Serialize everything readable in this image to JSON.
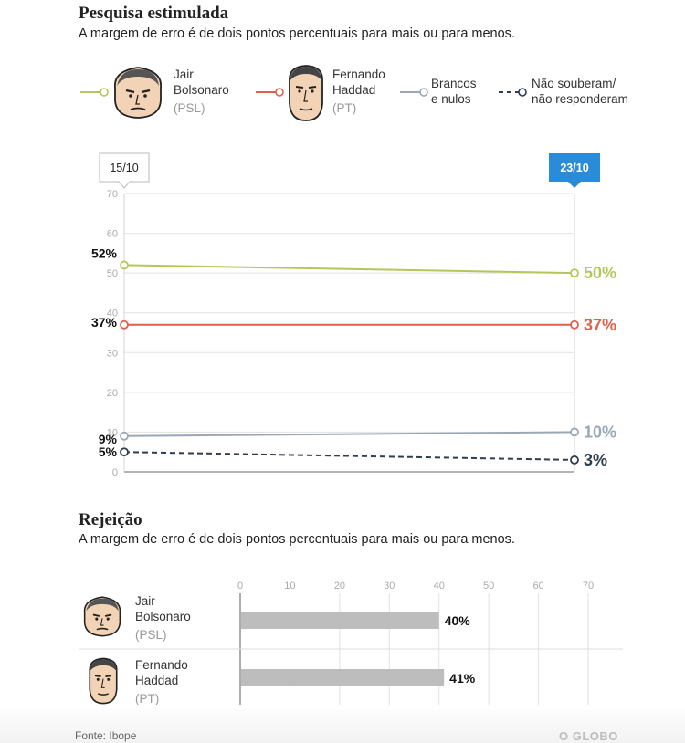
{
  "section1": {
    "title": "Pesquisa estimulada",
    "subtitle": "A margem de erro é de dois pontos percentuais para mais ou para menos."
  },
  "legend": [
    {
      "name_line1": "Jair",
      "name_line2": "Bolsonaro",
      "party": "(PSL)",
      "color": "#b5c75a",
      "dashed": false,
      "face": "bolsonaro-face-icon"
    },
    {
      "name_line1": "Fernando",
      "name_line2": "Haddad",
      "party": "(PT)",
      "color": "#e0604a",
      "dashed": false,
      "face": "haddad-face-icon"
    },
    {
      "name_line1": "Brancos",
      "name_line2": "e nulos",
      "party": "",
      "color": "#9aa8b6",
      "dashed": false,
      "face": ""
    },
    {
      "name_line1": "Não souberam/",
      "name_line2": "não responderam",
      "party": "",
      "color": "#2f3e4c",
      "dashed": true,
      "face": ""
    }
  ],
  "section2": {
    "title": "Rejeição",
    "subtitle": "A margem de erro é de dois pontos percentuais para mais ou para menos."
  },
  "footer": {
    "source": "Fonte: Ibope",
    "brand": "O GLOBO"
  },
  "chart_data": [
    {
      "type": "line",
      "x": [
        "15/10",
        "23/10"
      ],
      "ylim": [
        0,
        70
      ],
      "yticks": [
        0,
        10,
        20,
        30,
        40,
        50,
        60,
        70
      ],
      "grid": true,
      "series": [
        {
          "name": "Jair Bolsonaro (PSL)",
          "values": [
            52,
            50
          ],
          "color": "#b5c75a",
          "labels": [
            "52%",
            "50%"
          ]
        },
        {
          "name": "Fernando Haddad (PT)",
          "values": [
            37,
            37
          ],
          "color": "#e0604a",
          "labels": [
            "37%",
            "37%"
          ]
        },
        {
          "name": "Brancos e nulos",
          "values": [
            9,
            10
          ],
          "color": "#9aa8b6",
          "labels": [
            "9%",
            "10%"
          ]
        },
        {
          "name": "Não souberam/não responderam",
          "values": [
            5,
            3
          ],
          "color": "#2f3e4c",
          "dashed": true,
          "labels": [
            "5%",
            "3%"
          ]
        }
      ]
    },
    {
      "type": "bar",
      "orientation": "horizontal",
      "categories": [
        "Jair Bolsonaro (PSL)",
        "Fernando Haddad (PT)"
      ],
      "values": [
        40,
        41
      ],
      "labels": [
        "40%",
        "41%"
      ],
      "xlim": [
        0,
        70
      ],
      "xticks": [
        0,
        10,
        20,
        30,
        40,
        50,
        60,
        70
      ],
      "bar_color": "#bdbdbd",
      "rows": [
        {
          "name_line1": "Jair",
          "name_line2": "Bolsonaro",
          "party": "(PSL)",
          "face": "bolsonaro-face-icon"
        },
        {
          "name_line1": "Fernando",
          "name_line2": "Haddad",
          "party": "(PT)",
          "face": "haddad-face-icon"
        }
      ]
    }
  ]
}
